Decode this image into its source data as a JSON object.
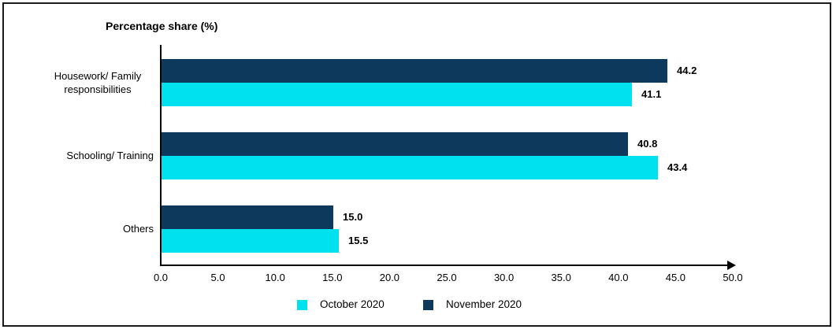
{
  "frame": {
    "border_color": "#1a1a1a",
    "background": "#ffffff"
  },
  "chart_data": {
    "type": "bar",
    "orientation": "horizontal",
    "title": "Percentage share (%)",
    "categories": [
      "Housework/ Family responsibilities",
      "Schooling/ Training",
      "Others"
    ],
    "series": [
      {
        "name": "October 2020",
        "color": "#00E1F0",
        "values": [
          41.1,
          43.4,
          15.5
        ],
        "labels": [
          "41.1",
          "43.4",
          "15.5"
        ]
      },
      {
        "name": "November 2020",
        "color": "#0D3A5C",
        "values": [
          44.2,
          40.8,
          15.0
        ],
        "labels": [
          "44.2",
          "40.8",
          "15.0"
        ]
      }
    ],
    "bar_order_top_to_bottom": [
      "November 2020",
      "October 2020"
    ],
    "xlim": [
      0,
      50
    ],
    "xtick_labels": [
      "0.0",
      "5.0",
      "10.0",
      "15.0",
      "20.0",
      "25.0",
      "30.0",
      "35.0",
      "40.0",
      "45.0",
      "50.0"
    ],
    "grid": false,
    "legend_position": "bottom",
    "axis_arrow": "right",
    "axis_color": "#000000",
    "text_color": "#000000"
  }
}
